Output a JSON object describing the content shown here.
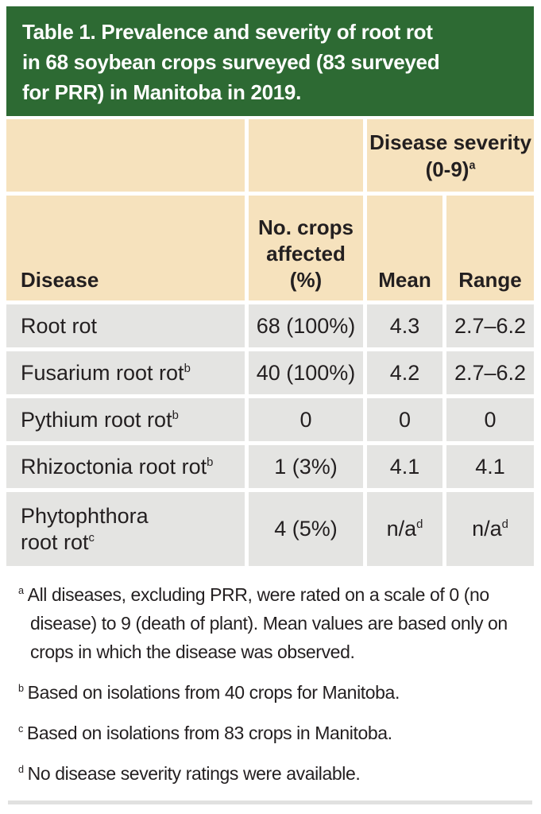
{
  "title": "Table 1. Prevalence and severity of root rot\nin 68 soybean crops surveyed (83 surveyed\nfor PRR) in Manitoba in 2019.",
  "colors": {
    "banner_green": "#2d6a33",
    "header_tan": "#f6e2bd",
    "row_gray": "#e4e4e2",
    "text": "#231f20",
    "banner_text": "#ffffff",
    "divider": "#e1e1e0"
  },
  "table": {
    "group_header": {
      "label": "Disease severity (0-9)",
      "sup": "a"
    },
    "columns": [
      {
        "label": "Disease"
      },
      {
        "label": "No. crops affected (%)"
      },
      {
        "label": "Mean"
      },
      {
        "label": "Range"
      }
    ],
    "rows": [
      {
        "disease": "Root rot",
        "sup": "",
        "crops": "68 (100%)",
        "mean": "4.3",
        "mean_sup": "",
        "range": "2.7–6.2",
        "range_sup": ""
      },
      {
        "disease": "Fusarium root rot",
        "sup": "b",
        "crops": "40 (100%)",
        "mean": "4.2",
        "mean_sup": "",
        "range": "2.7–6.2",
        "range_sup": ""
      },
      {
        "disease": "Pythium root rot",
        "sup": "b",
        "crops": "0",
        "mean": "0",
        "mean_sup": "",
        "range": "0",
        "range_sup": ""
      },
      {
        "disease": "Rhizoctonia root rot",
        "sup": "b",
        "crops": "1 (3%)",
        "mean": "4.1",
        "mean_sup": "",
        "range": "4.1",
        "range_sup": ""
      },
      {
        "disease": "Phytophthora\nroot rot",
        "sup": "c",
        "crops": "4 (5%)",
        "mean": "n/a",
        "mean_sup": "d",
        "range": "n/a",
        "range_sup": "d"
      }
    ]
  },
  "footnotes": [
    {
      "marker": "a",
      "text": "All diseases, excluding PRR, were rated on a scale of 0 (no disease) to 9 (death of plant). Mean values are based only on crops in which the disease was observed."
    },
    {
      "marker": "b",
      "text": "Based on isolations from 40 crops for Manitoba."
    },
    {
      "marker": "c",
      "text": "Based on isolations from 83 crops in Manitoba."
    },
    {
      "marker": "d",
      "text": "No disease severity ratings were available."
    }
  ]
}
